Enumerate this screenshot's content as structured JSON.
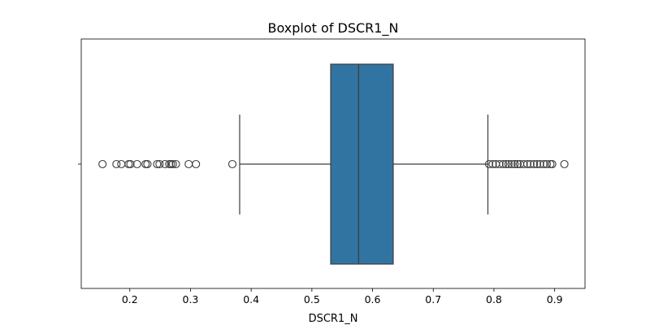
{
  "chart_data": {
    "type": "box",
    "title": "Boxplot of DSCR1_N",
    "xlabel": "DSCR1_N",
    "ylabel": "",
    "orientation": "horizontal",
    "xlim": [
      0.12,
      0.95
    ],
    "xticks": [
      0.2,
      0.3,
      0.4,
      0.5,
      0.6,
      0.7,
      0.8,
      0.9
    ],
    "xtick_labels": [
      "0.2",
      "0.3",
      "0.4",
      "0.5",
      "0.6",
      "0.7",
      "0.8",
      "0.9"
    ],
    "grid": false,
    "colors": {
      "box_fill": "#3274a1",
      "line": "#3d3d3d"
    },
    "box": {
      "whisker_low": 0.381,
      "q1": 0.531,
      "median": 0.577,
      "q3": 0.634,
      "whisker_high": 0.79
    },
    "outliers": [
      0.155,
      0.178,
      0.186,
      0.198,
      0.201,
      0.212,
      0.226,
      0.229,
      0.245,
      0.249,
      0.258,
      0.265,
      0.268,
      0.271,
      0.276,
      0.297,
      0.309,
      0.369,
      0.792,
      0.798,
      0.803,
      0.809,
      0.815,
      0.82,
      0.824,
      0.829,
      0.834,
      0.839,
      0.843,
      0.849,
      0.855,
      0.86,
      0.866,
      0.871,
      0.876,
      0.882,
      0.887,
      0.893,
      0.896,
      0.916
    ]
  }
}
